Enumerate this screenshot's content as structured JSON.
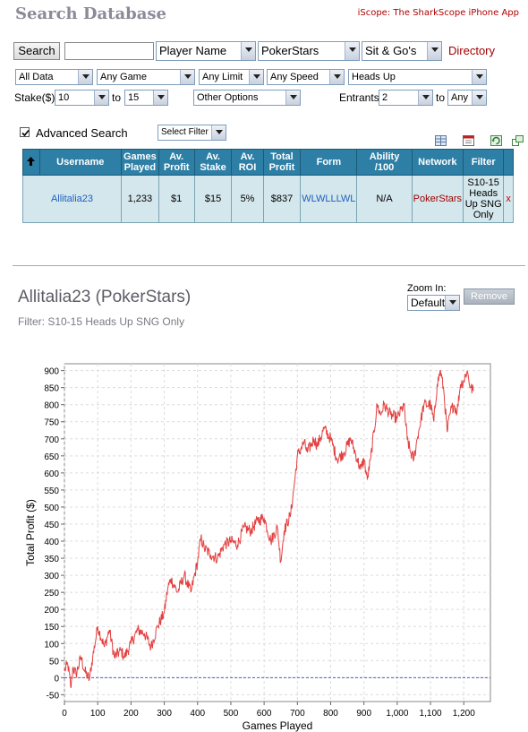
{
  "header": {
    "title": "Search Database",
    "iscope_link": "iScope: The SharkScope iPhone App"
  },
  "search": {
    "button_label": "Search",
    "query_value": "",
    "search_type": "Player Name",
    "network": "PokerStars",
    "game_type": "Sit & Go's",
    "directory_link": "Directory"
  },
  "filters": {
    "data": "All Data",
    "game": "Any Game",
    "limit": "Any Limit",
    "speed": "Any Speed",
    "table_size": "Heads Up",
    "stake_label": "Stake($)",
    "stake_min": "10",
    "stake_to": "to",
    "stake_max": "15",
    "other_options": "Other Options",
    "entrants_label": "Entrants",
    "entrants_min": "2",
    "entrants_to": "to",
    "entrants_max": "Any"
  },
  "advanced": {
    "label": "Advanced Search",
    "checked": true,
    "select_filter": "Select Filter"
  },
  "results": {
    "sort_icon": "up-arrow-icon",
    "headers": [
      "Username",
      "Games Played",
      "Av. Profit",
      "Av. Stake",
      "Av. ROI",
      "Total Profit",
      "Form",
      "Ability /100",
      "Network",
      "Filter"
    ],
    "rows": [
      {
        "username": "Allitalia23",
        "games_played": "1,233",
        "av_profit": "$1",
        "av_stake": "$15",
        "av_roi": "5%",
        "total_profit": "$837",
        "form": "WLWLLLWL",
        "ability": "N/A",
        "network": "PokerStars",
        "filter": "S10-15 Heads Up SNG Only",
        "remove": "x"
      }
    ]
  },
  "player": {
    "title": "Allitalia23 (PokerStars)",
    "filter_text": "Filter: S10-15 Heads Up SNG Only",
    "zoom_label": "Zoom In:",
    "zoom_value": "Default",
    "remove_button": "Remove"
  },
  "colors": {
    "line": "#e34040",
    "header_bg": "#2e7fa5",
    "row_bg": "#d4e7ec",
    "link_red": "#a00000",
    "link_blue": "#1f5fbf"
  },
  "chart_data": {
    "type": "line",
    "title": "",
    "xlabel": "Games Played",
    "ylabel": "Total Profit ($)",
    "xlim": [
      0,
      1280
    ],
    "ylim": [
      -70,
      920
    ],
    "x_ticks": [
      "0",
      "100",
      "200",
      "300",
      "400",
      "500",
      "600",
      "700",
      "800",
      "900",
      "1,000",
      "1,100",
      "1,200"
    ],
    "y_ticks": [
      "-50",
      "0",
      "50",
      "100",
      "150",
      "200",
      "250",
      "300",
      "350",
      "400",
      "450",
      "500",
      "550",
      "600",
      "650",
      "700",
      "750",
      "800",
      "850",
      "900"
    ],
    "grid": true,
    "zero_line": true,
    "series": [
      {
        "x": [
          0,
          10,
          20,
          25,
          35,
          50,
          60,
          75,
          85,
          100,
          120,
          135,
          150,
          170,
          180,
          200,
          220,
          240,
          260,
          280,
          300,
          310,
          320,
          340,
          360,
          380,
          400,
          410,
          420,
          440,
          460,
          480,
          500,
          520,
          540,
          560,
          580,
          600,
          620,
          640,
          650,
          660,
          680,
          690,
          700,
          710,
          720,
          730,
          750,
          760,
          780,
          800,
          820,
          840,
          860,
          880,
          890,
          900,
          910,
          920,
          940,
          950,
          960,
          980,
          1000,
          1020,
          1030,
          1040,
          1050,
          1060,
          1080,
          1100,
          1110,
          1120,
          1130,
          1140,
          1150,
          1160,
          1170,
          1180,
          1190,
          1200,
          1210,
          1220,
          1230
        ],
        "y": [
          20,
          40,
          -30,
          30,
          10,
          60,
          20,
          -5,
          60,
          150,
          90,
          140,
          60,
          80,
          60,
          100,
          140,
          130,
          90,
          150,
          190,
          260,
          290,
          250,
          300,
          250,
          340,
          410,
          380,
          360,
          350,
          390,
          400,
          390,
          440,
          430,
          460,
          470,
          400,
          440,
          340,
          430,
          480,
          560,
          650,
          670,
          690,
          660,
          700,
          680,
          730,
          700,
          640,
          660,
          700,
          640,
          610,
          640,
          580,
          640,
          800,
          770,
          800,
          770,
          760,
          800,
          700,
          660,
          640,
          700,
          800,
          800,
          750,
          860,
          900,
          840,
          720,
          780,
          800,
          780,
          860,
          870,
          900,
          850,
          840
        ]
      }
    ]
  }
}
